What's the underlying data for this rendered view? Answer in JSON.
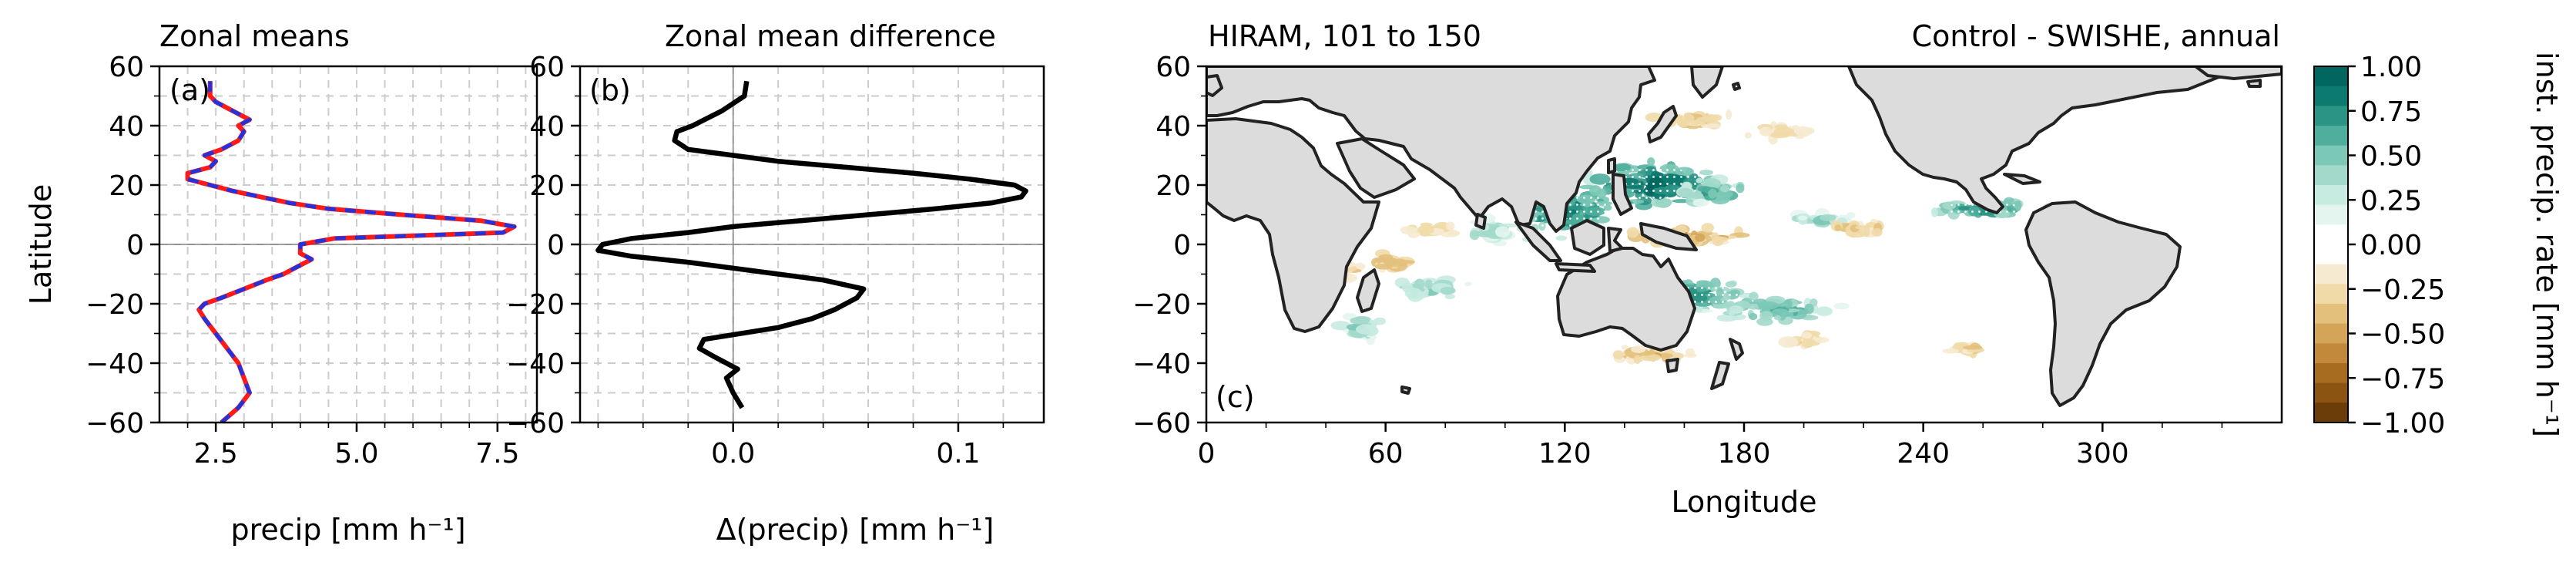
{
  "colors": {
    "line_red": "#ff1a1a",
    "line_blue": "#2233dd",
    "difference_line": "#000000",
    "zero_line": "#808080",
    "land": "#dcdcdc",
    "coast": "#222222"
  },
  "chart_data": [
    {
      "id": "a",
      "type": "line",
      "title": "Zonal means",
      "panel_tag": "(a)",
      "xlabel": "precip [mm h⁻¹]",
      "ylabel": "Latitude",
      "xlim": [
        1.5,
        8.2
      ],
      "ylim": [
        -60,
        60
      ],
      "xticks": [
        "2.5",
        "5.0",
        "7.5"
      ],
      "xtick_values": [
        2.5,
        5.0,
        7.5
      ],
      "yticks": [
        "60",
        "40",
        "20",
        "0",
        "−20",
        "−40",
        "−60"
      ],
      "ytick_values": [
        60,
        40,
        20,
        0,
        -20,
        -40,
        -60
      ],
      "grid": true,
      "style": "red solid line overlaid by blue dashes",
      "y": [
        -60,
        -55,
        -50,
        -45,
        -40,
        -35,
        -30,
        -25,
        -22,
        -20,
        -18,
        -15,
        -12,
        -10,
        -8,
        -5,
        -3,
        0,
        2,
        4,
        6,
        8,
        10,
        12,
        14,
        16,
        18,
        20,
        22,
        24,
        26,
        28,
        30,
        32,
        35,
        38,
        40,
        42,
        45,
        48,
        50,
        55
      ],
      "series": [
        {
          "values": [
            2.6,
            2.9,
            3.1,
            3.0,
            2.9,
            2.7,
            2.5,
            2.3,
            2.2,
            2.3,
            2.6,
            3.0,
            3.4,
            3.7,
            3.9,
            4.2,
            4.0,
            4.0,
            4.6,
            7.6,
            7.8,
            7.2,
            5.8,
            4.5,
            3.8,
            3.3,
            2.8,
            2.4,
            2.0,
            2.0,
            2.4,
            2.5,
            2.3,
            2.6,
            2.9,
            3.0,
            2.9,
            3.1,
            2.8,
            2.5,
            2.4,
            2.4
          ]
        },
        {
          "values": [
            2.6,
            2.9,
            3.1,
            3.0,
            2.9,
            2.7,
            2.5,
            2.3,
            2.2,
            2.3,
            2.6,
            3.0,
            3.4,
            3.7,
            3.9,
            4.2,
            4.0,
            4.0,
            4.6,
            7.6,
            7.8,
            7.2,
            5.8,
            4.5,
            3.8,
            3.3,
            2.8,
            2.4,
            2.0,
            2.0,
            2.4,
            2.5,
            2.3,
            2.6,
            2.9,
            3.0,
            2.9,
            3.1,
            2.8,
            2.5,
            2.4,
            2.4
          ]
        }
      ]
    },
    {
      "id": "b",
      "type": "line",
      "title": "Zonal mean difference",
      "panel_tag": "(b)",
      "xlabel": "Δ(precip) [mm h⁻¹]",
      "xlim": [
        -0.068,
        0.138
      ],
      "ylim": [
        -60,
        60
      ],
      "xticks": [
        "0.0",
        "0.1"
      ],
      "xtick_values": [
        0.0,
        0.1
      ],
      "yticks": [
        "60",
        "40",
        "20",
        "0",
        "−20",
        "−40",
        "−60"
      ],
      "ytick_values": [
        60,
        40,
        20,
        0,
        -20,
        -40,
        -60
      ],
      "grid": true,
      "y": [
        -55,
        -50,
        -45,
        -42,
        -38,
        -35,
        -32,
        -28,
        -25,
        -22,
        -20,
        -18,
        -15,
        -12,
        -10,
        -8,
        -6,
        -4,
        -2,
        0,
        2,
        4,
        6,
        8,
        10,
        12,
        14,
        16,
        18,
        20,
        22,
        24,
        26,
        28,
        30,
        32,
        35,
        38,
        40,
        45,
        50,
        55
      ],
      "values": [
        0.004,
        0.0,
        -0.003,
        0.002,
        -0.008,
        -0.015,
        -0.013,
        0.02,
        0.035,
        0.045,
        0.05,
        0.055,
        0.058,
        0.04,
        0.02,
        0.0,
        -0.02,
        -0.045,
        -0.06,
        -0.058,
        -0.045,
        -0.02,
        0.0,
        0.03,
        0.06,
        0.09,
        0.115,
        0.128,
        0.13,
        0.125,
        0.105,
        0.08,
        0.05,
        0.02,
        0.0,
        -0.02,
        -0.026,
        -0.025,
        -0.018,
        -0.005,
        0.005,
        0.006
      ]
    },
    {
      "id": "c",
      "type": "heatmap",
      "title_left": "HIRAM, 101 to 150",
      "title_right": "Control - SWISHE, annual",
      "panel_tag": "(c)",
      "xlabel": "Longitude",
      "xlim": [
        0,
        360
      ],
      "ylim": [
        -60,
        60
      ],
      "xticks": [
        "0",
        "60",
        "120",
        "180",
        "240",
        "300"
      ],
      "xtick_values": [
        0,
        60,
        120,
        180,
        240,
        300
      ],
      "yticks": [
        "60",
        "40",
        "20",
        "0",
        "−20",
        "−40",
        "−60"
      ],
      "ytick_values": [
        60,
        40,
        20,
        0,
        -20,
        -40,
        -60
      ],
      "colorbar": {
        "label": "inst. precip. rate [mm h⁻¹]",
        "ticks": [
          "1.00",
          "0.75",
          "0.50",
          "0.25",
          "0.00",
          "−0.25",
          "−0.50",
          "−0.75",
          "−1.00"
        ],
        "levels": [
          "#01665e",
          "#0d7a70",
          "#2b9484",
          "#4fae9c",
          "#7cc8b7",
          "#a3d9cb",
          "#c7eae1",
          "#e4f5f0",
          "#ffffff",
          "#ffffff",
          "#f6ead0",
          "#efdaa8",
          "#e3c17d",
          "#d4a558",
          "#c3893a",
          "#a86c20",
          "#8c5412",
          "#6b3d08"
        ]
      },
      "anomaly_regions": [
        {
          "sign": "positive",
          "lon": 120,
          "lat": 12,
          "dlon": 24,
          "dlat": 12,
          "strength": 0.8
        },
        {
          "sign": "positive",
          "lon": 150,
          "lat": 20,
          "dlon": 28,
          "dlat": 10,
          "strength": 0.9
        },
        {
          "sign": "positive",
          "lon": 170,
          "lat": 18,
          "dlon": 14,
          "dlat": 6,
          "strength": 0.6
        },
        {
          "sign": "positive",
          "lon": 260,
          "lat": 12,
          "dlon": 22,
          "dlat": 4,
          "strength": 0.7
        },
        {
          "sign": "positive",
          "lon": 288,
          "lat": 10,
          "dlon": 14,
          "dlat": 4,
          "strength": 0.5
        },
        {
          "sign": "positive",
          "lon": 160,
          "lat": -17,
          "dlon": 30,
          "dlat": 7,
          "strength": 0.7
        },
        {
          "sign": "positive",
          "lon": 190,
          "lat": -22,
          "dlon": 26,
          "dlat": 6,
          "strength": 0.6
        },
        {
          "sign": "positive",
          "lon": 135,
          "lat": -8,
          "dlon": 14,
          "dlat": 5,
          "strength": 0.6
        },
        {
          "sign": "positive",
          "lon": 75,
          "lat": -15,
          "dlon": 14,
          "dlat": 5,
          "strength": 0.4
        },
        {
          "sign": "positive",
          "lon": 52,
          "lat": -28,
          "dlon": 10,
          "dlat": 5,
          "strength": 0.4
        },
        {
          "sign": "positive",
          "lon": 95,
          "lat": 5,
          "dlon": 12,
          "dlat": 5,
          "strength": 0.4
        },
        {
          "sign": "positive",
          "lon": 205,
          "lat": 8,
          "dlon": 14,
          "dlat": 3,
          "strength": 0.4
        },
        {
          "sign": "negative",
          "lon": 160,
          "lat": 3,
          "dlon": 30,
          "dlat": 4,
          "strength": 0.5
        },
        {
          "sign": "negative",
          "lon": 125,
          "lat": 42,
          "dlon": 14,
          "dlat": 3,
          "strength": 0.4
        },
        {
          "sign": "negative",
          "lon": 165,
          "lat": 42,
          "dlon": 18,
          "dlat": 3,
          "strength": 0.4
        },
        {
          "sign": "negative",
          "lon": 60,
          "lat": -6,
          "dlon": 12,
          "dlat": 4,
          "strength": 0.4
        },
        {
          "sign": "negative",
          "lon": 45,
          "lat": -8,
          "dlon": 8,
          "dlat": 4,
          "strength": 0.35
        },
        {
          "sign": "negative",
          "lon": 75,
          "lat": 5,
          "dlon": 10,
          "dlat": 3,
          "strength": 0.3
        },
        {
          "sign": "negative",
          "lon": 150,
          "lat": -37,
          "dlon": 22,
          "dlat": 3,
          "strength": 0.35
        },
        {
          "sign": "negative",
          "lon": 200,
          "lat": -32,
          "dlon": 12,
          "dlat": 3,
          "strength": 0.3
        },
        {
          "sign": "negative",
          "lon": 218,
          "lat": 5,
          "dlon": 14,
          "dlat": 3,
          "strength": 0.35
        },
        {
          "sign": "negative",
          "lon": 190,
          "lat": 38,
          "dlon": 14,
          "dlat": 3,
          "strength": 0.3
        },
        {
          "sign": "negative",
          "lon": 255,
          "lat": -35,
          "dlon": 10,
          "dlat": 3,
          "strength": 0.3
        }
      ]
    }
  ]
}
